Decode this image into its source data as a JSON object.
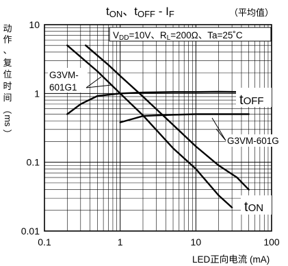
{
  "chart_data": {
    "type": "line",
    "title": {
      "t1": "t",
      "sub1": "ON",
      "sep": "、",
      "t2": "t",
      "sub2": "OFF",
      "dash": " - I",
      "sub3": "F"
    },
    "title_note": "（平均值）",
    "conditions": {
      "v": "V",
      "v_sub": "DD",
      "v_val": "=10V、",
      "r": "R",
      "r_sub": "L",
      "r_val": "=200Ω、",
      "ta": "Ta=25˚C"
    },
    "ylabel_chars": [
      "动",
      "作",
      "、",
      "复",
      "位",
      "时",
      "间",
      "（",
      "ms",
      "）"
    ],
    "xlabel": "LED正向电流 (mA)",
    "x_scale": "log",
    "y_scale": "log",
    "xlim": [
      0.1,
      100
    ],
    "ylim": [
      0.01,
      10
    ],
    "x_ticks": [
      "0.1",
      "1",
      "10",
      "100"
    ],
    "y_ticks": [
      "0.01",
      "0.1",
      "1",
      "10"
    ],
    "grid": true,
    "series": [
      {
        "name": "G3VM-601G1 tOFF",
        "points": [
          [
            0.2,
            0.5
          ],
          [
            0.3,
            0.7
          ],
          [
            0.5,
            0.92
          ],
          [
            1,
            1.0
          ],
          [
            2,
            1.03
          ],
          [
            5,
            1.05
          ],
          [
            10,
            1.05
          ],
          [
            20,
            1.06
          ],
          [
            40,
            1.05
          ]
        ]
      },
      {
        "name": "G3VM-601G1 tON",
        "points": [
          [
            0.2,
            5.0
          ],
          [
            0.5,
            2.1
          ],
          [
            1,
            1.0
          ],
          [
            2,
            0.48
          ],
          [
            5,
            0.16
          ],
          [
            10,
            0.08
          ],
          [
            20,
            0.033
          ],
          [
            30,
            0.022
          ]
        ]
      },
      {
        "name": "G3VM-601G tOFF",
        "points": [
          [
            1,
            0.38
          ],
          [
            1.5,
            0.43
          ],
          [
            2,
            0.47
          ],
          [
            3,
            0.48
          ],
          [
            5,
            0.49
          ],
          [
            10,
            0.5
          ],
          [
            20,
            0.5
          ],
          [
            50,
            0.5
          ]
        ]
      },
      {
        "name": "G3VM-601G tON",
        "points": [
          [
            0.35,
            5.0
          ],
          [
            0.7,
            2.6
          ],
          [
            1,
            1.8
          ],
          [
            2,
            0.9
          ],
          [
            5,
            0.35
          ],
          [
            10,
            0.17
          ],
          [
            20,
            0.09
          ],
          [
            35,
            0.06
          ],
          [
            50,
            0.04
          ]
        ]
      }
    ],
    "annotations": {
      "label_601g1_line1": "G3VM-",
      "label_601g1_line2": "601G1",
      "label_601g": "G3VM-601G",
      "toff": {
        "t": "t",
        "sub": "OFF"
      },
      "ton": {
        "t": "t",
        "sub": "ON"
      }
    }
  }
}
